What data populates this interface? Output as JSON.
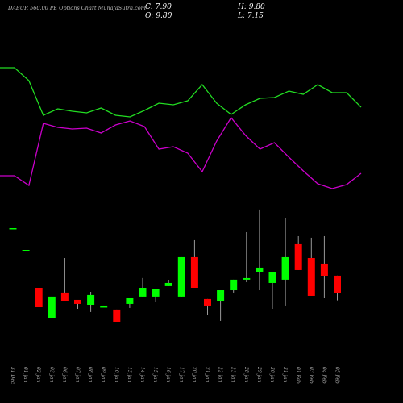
{
  "chart_data": {
    "type": "candlestick",
    "title": "DABUR 560.00 PE Options Chart MunafaSutra.com",
    "ohlc_labels": [
      "C: 7.90",
      "H: 9.80",
      "O: 9.80",
      "L: 7.15"
    ],
    "categories": [
      "31 Dec",
      "01 Jan",
      "02 Jan",
      "03 Jan",
      "06 Jan",
      "07 Jan",
      "08 Jan",
      "09 Jan",
      "10 Jan",
      "13 Jan",
      "14 Jan",
      "15 Jan",
      "16 Jan",
      "17 Jan",
      "20 Jan",
      "21 Jan",
      "22 Jan",
      "23 Jan",
      "28 Jan",
      "29 Jan",
      "30 Jan",
      "31 Jan",
      "01 Feb",
      "03 Feb",
      "04 Feb",
      "05 Feb"
    ],
    "open": [
      14.88,
      12.55,
      8.5,
      5.31,
      7.99,
      7.21,
      6.69,
      6.43,
      6.18,
      6.78,
      7.56,
      7.56,
      8.68,
      7.56,
      11.78,
      7.3,
      7.04,
      8.24,
      9.37,
      10.14,
      9.02,
      9.37,
      13.16,
      11.69,
      11.09,
      9.8
    ],
    "high": [
      14.88,
      12.55,
      8.5,
      7.56,
      11.69,
      7.21,
      8.07,
      6.52,
      6.18,
      7.38,
      9.54,
      8.33,
      9.28,
      11.78,
      13.59,
      7.3,
      8.24,
      9.37,
      14.45,
      16.87,
      10.14,
      16.0,
      14.02,
      13.85,
      14.02,
      9.8
    ],
    "low": [
      14.88,
      12.55,
      6.43,
      5.31,
      7.04,
      6.26,
      5.92,
      6.43,
      4.88,
      6.35,
      7.56,
      6.95,
      8.68,
      7.56,
      8.5,
      5.57,
      4.97,
      7.99,
      9.1,
      8.24,
      6.26,
      6.52,
      10.4,
      7.64,
      7.38,
      7.15
    ],
    "close": [
      14.88,
      12.55,
      6.43,
      7.56,
      7.04,
      6.78,
      7.73,
      6.52,
      4.88,
      7.38,
      8.5,
      8.33,
      9.02,
      11.78,
      8.5,
      6.52,
      8.24,
      9.37,
      9.54,
      10.66,
      10.14,
      11.78,
      10.4,
      7.64,
      9.71,
      7.9
    ],
    "ylim": [
      3,
      18
    ],
    "up_color": "#00ff00",
    "down_color": "#ff0000",
    "lines_ylim": [
      0,
      200
    ],
    "lines": [
      {
        "color": "#22dd22",
        "values": [
          166,
          166,
          150,
          107,
          115,
          112,
          110,
          116,
          107,
          105,
          113,
          122,
          120,
          125,
          145,
          122,
          108,
          120,
          128,
          129,
          137,
          133,
          145,
          135,
          135,
          117
        ]
      },
      {
        "color": "#cc00cc",
        "values": [
          32,
          32,
          20,
          97,
          92,
          90,
          91,
          85,
          95,
          100,
          93,
          65,
          68,
          60,
          37,
          75,
          104,
          82,
          65,
          73,
          55,
          38,
          22,
          16,
          21,
          35
        ]
      }
    ]
  }
}
